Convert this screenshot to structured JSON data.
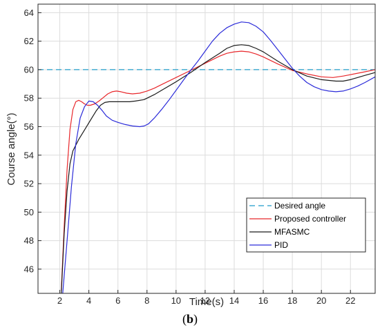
{
  "chart_data": {
    "type": "line",
    "xlabel": "Time(s)",
    "ylabel": "Course angle(°)",
    "xlim": [
      0.5,
      23.7
    ],
    "ylim": [
      44.3,
      64.6
    ],
    "xticks": [
      2,
      4,
      6,
      8,
      10,
      12,
      14,
      16,
      18,
      20,
      22
    ],
    "yticks": [
      46,
      48,
      50,
      52,
      54,
      56,
      58,
      60,
      62,
      64
    ],
    "grid": true,
    "legend_position": "bottom-right",
    "series": [
      {
        "name": "Desired angle",
        "color": "#1f9bc9",
        "dashed": true,
        "x": [
          0.5,
          23.7
        ],
        "y": [
          60,
          60
        ]
      },
      {
        "name": "Proposed controller",
        "color": "#e8262a",
        "dashed": false,
        "x": [
          2.1,
          2.3,
          2.5,
          2.7,
          2.9,
          3.1,
          3.3,
          3.5,
          3.7,
          3.9,
          4.1,
          4.4,
          4.7,
          5.0,
          5.3,
          5.6,
          5.9,
          6.2,
          6.6,
          7.0,
          7.5,
          8.0,
          8.5,
          9.0,
          10.0,
          11.0,
          12.0,
          13.0,
          13.5,
          14.0,
          14.5,
          15.0,
          15.5,
          16.0,
          17.0,
          18.0,
          19.0,
          20.0,
          20.8,
          21.5,
          22.0,
          23.0,
          23.7
        ],
        "y": [
          44.5,
          49.0,
          53.0,
          55.8,
          57.2,
          57.75,
          57.85,
          57.75,
          57.6,
          57.5,
          57.5,
          57.6,
          57.8,
          58.05,
          58.3,
          58.45,
          58.5,
          58.45,
          58.35,
          58.3,
          58.35,
          58.5,
          58.7,
          58.95,
          59.45,
          59.95,
          60.45,
          60.95,
          61.15,
          61.25,
          61.3,
          61.25,
          61.1,
          60.9,
          60.4,
          59.95,
          59.7,
          59.5,
          59.45,
          59.55,
          59.65,
          59.85,
          60.0
        ]
      },
      {
        "name": "MFASMC",
        "color": "#1a1a1a",
        "dashed": false,
        "x": [
          2.1,
          2.3,
          2.5,
          2.7,
          2.9,
          3.1,
          3.3,
          3.6,
          3.9,
          4.2,
          4.5,
          4.8,
          5.1,
          5.4,
          5.7,
          6.0,
          6.4,
          6.8,
          7.2,
          7.8,
          8.5,
          9.0,
          10.0,
          11.0,
          12.0,
          13.0,
          13.5,
          14.0,
          14.5,
          15.0,
          15.5,
          16.0,
          17.0,
          18.0,
          19.0,
          20.0,
          21.0,
          21.5,
          22.0,
          23.0,
          23.7
        ],
        "y": [
          44.3,
          48.5,
          51.5,
          53.4,
          54.3,
          54.7,
          55.1,
          55.6,
          56.1,
          56.6,
          57.1,
          57.5,
          57.7,
          57.75,
          57.75,
          57.75,
          57.75,
          57.75,
          57.8,
          57.9,
          58.25,
          58.55,
          59.15,
          59.8,
          60.5,
          61.15,
          61.5,
          61.7,
          61.75,
          61.7,
          61.5,
          61.25,
          60.6,
          60.0,
          59.55,
          59.3,
          59.2,
          59.2,
          59.3,
          59.6,
          59.8
        ]
      },
      {
        "name": "PID",
        "color": "#2b2bd9",
        "dashed": false,
        "x": [
          2.2,
          2.5,
          2.8,
          3.1,
          3.4,
          3.7,
          4.0,
          4.3,
          4.6,
          4.9,
          5.2,
          5.6,
          6.0,
          6.5,
          7.0,
          7.5,
          7.8,
          8.1,
          8.5,
          9.0,
          9.5,
          10.0,
          10.5,
          11.0,
          11.5,
          12.0,
          12.5,
          13.0,
          13.5,
          14.0,
          14.5,
          15.0,
          15.5,
          16.0,
          16.5,
          17.0,
          17.5,
          18.0,
          18.5,
          19.0,
          19.5,
          20.0,
          20.5,
          21.0,
          21.5,
          22.0,
          22.5,
          23.0,
          23.7
        ],
        "y": [
          44.3,
          48.0,
          51.8,
          54.8,
          56.6,
          57.4,
          57.8,
          57.75,
          57.5,
          57.15,
          56.75,
          56.45,
          56.3,
          56.15,
          56.05,
          56.0,
          56.05,
          56.2,
          56.6,
          57.2,
          57.85,
          58.55,
          59.25,
          59.95,
          60.6,
          61.3,
          62.0,
          62.55,
          62.95,
          63.2,
          63.35,
          63.3,
          63.05,
          62.65,
          62.05,
          61.4,
          60.75,
          60.1,
          59.55,
          59.1,
          58.8,
          58.6,
          58.5,
          58.45,
          58.5,
          58.65,
          58.85,
          59.1,
          59.5
        ]
      }
    ]
  },
  "panel_label": {
    "open": "(",
    "letter": "b",
    "close": ")"
  }
}
